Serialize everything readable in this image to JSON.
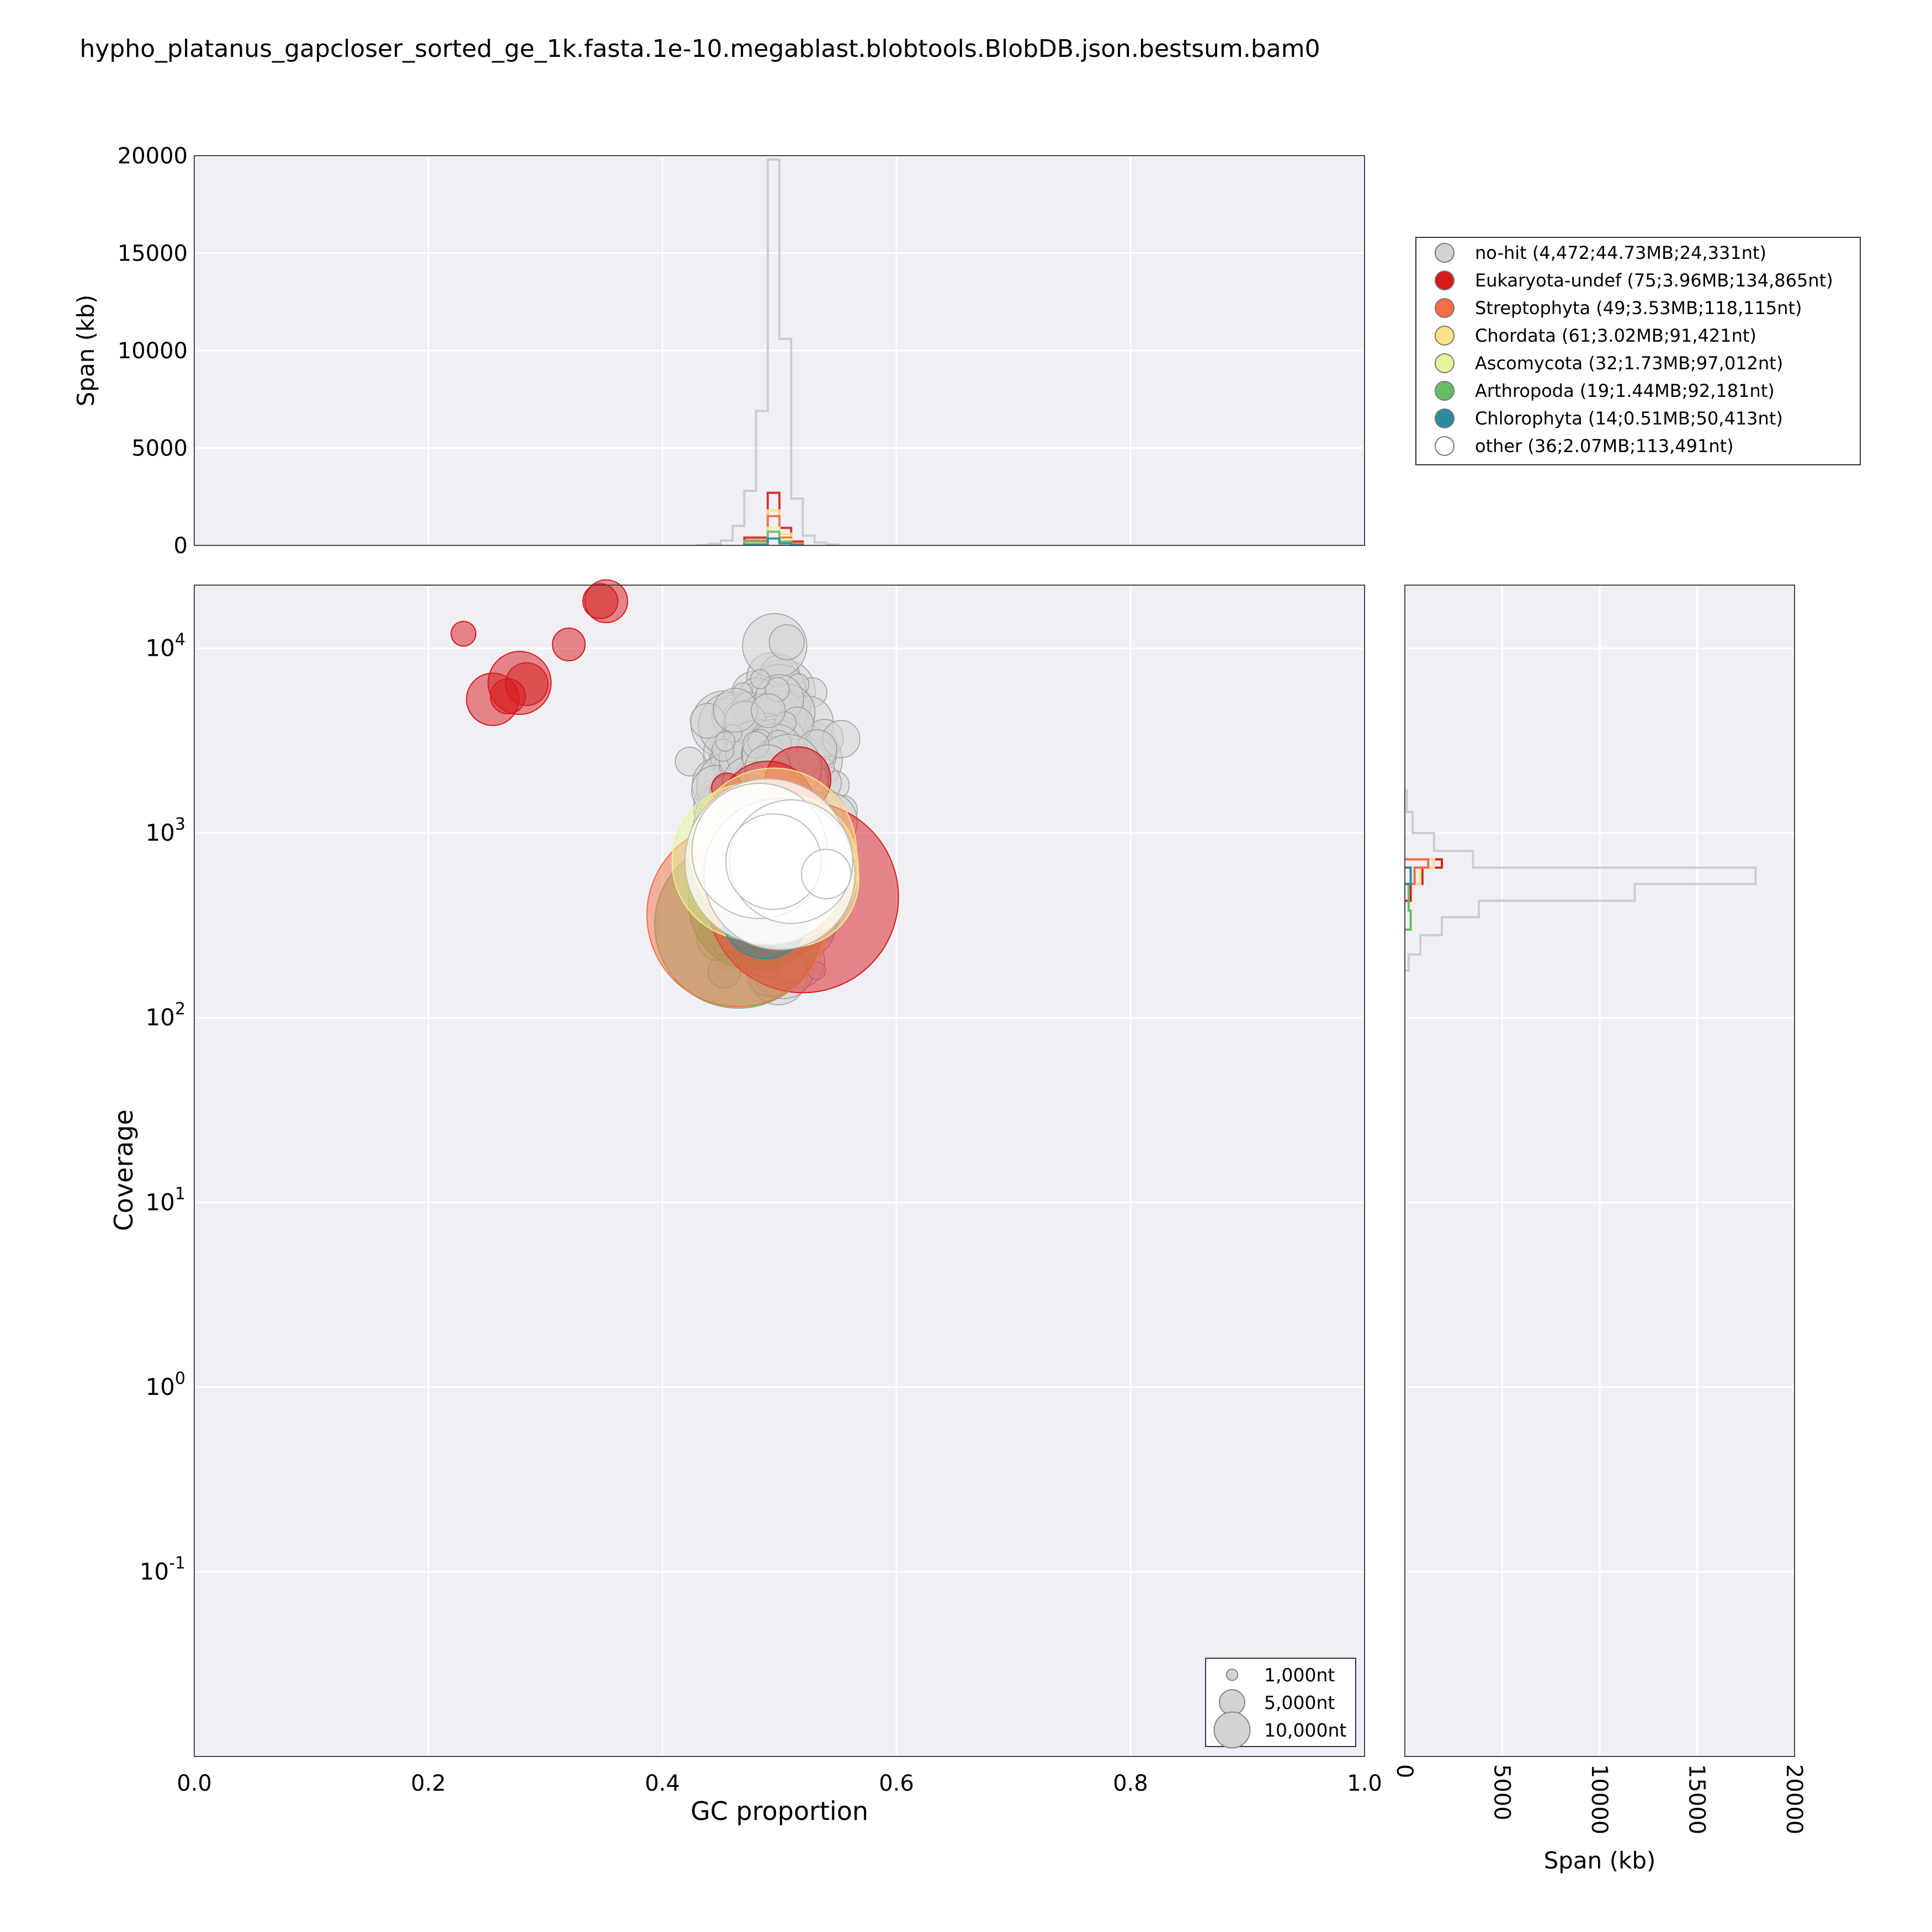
{
  "chart_data": {
    "type": "scatter",
    "title": "hypho_platanus_gapcloser_sorted_ge_1k.fasta.1e-10.megablast.blobtools.BlobDB.json.bestsum.bam0",
    "main": {
      "xlabel": "GC proportion",
      "ylabel": "Coverage",
      "xlim": [
        0.0,
        1.0
      ],
      "ylog": true,
      "ylim": [
        0.01,
        22000
      ],
      "xticks": [
        "0.0",
        "0.2",
        "0.4",
        "0.6",
        "0.8",
        "1.0"
      ],
      "yticks": [
        {
          "base": "10",
          "exp": "4",
          "value": 10000
        },
        {
          "base": "10",
          "exp": "3",
          "value": 1000
        },
        {
          "base": "10",
          "exp": "2",
          "value": 100
        },
        {
          "base": "10",
          "exp": "1",
          "value": 10
        },
        {
          "base": "10",
          "exp": "0",
          "value": 1
        },
        {
          "base": "10",
          "exp": "-1",
          "value": 0.1
        }
      ],
      "grid": true
    },
    "top_hist": {
      "ylabel": "Span (kb)",
      "ylim": [
        0,
        20000
      ],
      "yticks": [
        "20000",
        "15000",
        "10000",
        "5000",
        "0"
      ],
      "bins_gc": [
        0.43,
        0.44,
        0.45,
        0.46,
        0.47,
        0.48,
        0.49,
        0.5,
        0.51,
        0.52,
        0.53,
        0.54,
        0.55
      ],
      "nohit_span": [
        20,
        80,
        250,
        1000,
        2800,
        6900,
        19800,
        10600,
        2400,
        500,
        150,
        50
      ]
    },
    "right_hist": {
      "xlabel": "Span (kb)",
      "xlim": [
        0,
        20000
      ],
      "xticks": [
        "0",
        "5000",
        "10000",
        "15000",
        "20000"
      ],
      "bins_cov": [
        180,
        220,
        280,
        350,
        430,
        530,
        650,
        800,
        1000,
        1300,
        1700
      ],
      "nohit_span": [
        200,
        800,
        1900,
        3800,
        11800,
        18000,
        3500,
        1500,
        400,
        100
      ]
    },
    "legend": [
      {
        "label": "no-hit (4,472;44.73MB;24,331nt)",
        "color": "#d3d3d3"
      },
      {
        "label": "Eukaryota-undef (75;3.96MB;134,865nt)",
        "color": "#d7191c"
      },
      {
        "label": "Streptophyta (49;3.53MB;118,115nt)",
        "color": "#f46d43"
      },
      {
        "label": "Chordata (61;3.02MB;91,421nt)",
        "color": "#fee08b"
      },
      {
        "label": "Ascomycota (32;1.73MB;97,012nt)",
        "color": "#e6f598"
      },
      {
        "label": "Arthropoda (19;1.44MB;92,181nt)",
        "color": "#66bd63"
      },
      {
        "label": "Chlorophyta (14;0.51MB;50,413nt)",
        "color": "#2b8ba0"
      },
      {
        "label": "other (36;2.07MB;113,491nt)",
        "color": "#ffffff"
      }
    ],
    "legend_placement": "right of top histogram",
    "size_legend": [
      {
        "label": "1,000nt",
        "length": 1000
      },
      {
        "label": "5,000nt",
        "length": 5000
      },
      {
        "label": "10,000nt",
        "length": 10000
      }
    ],
    "size_legend_placement": "lower-right",
    "series": [
      {
        "name": "Eukaryota-undef",
        "points": [
          {
            "gc": 0.23,
            "cov": 12000,
            "len": 2000
          },
          {
            "gc": 0.255,
            "cov": 5300,
            "len": 9000
          },
          {
            "gc": 0.268,
            "cov": 5500,
            "len": 4000
          },
          {
            "gc": 0.278,
            "cov": 6500,
            "len": 13000
          },
          {
            "gc": 0.284,
            "cov": 6400,
            "len": 6000
          },
          {
            "gc": 0.32,
            "cov": 10500,
            "len": 3500
          },
          {
            "gc": 0.347,
            "cov": 18000,
            "len": 4000
          },
          {
            "gc": 0.352,
            "cov": 18000,
            "len": 6000
          },
          {
            "gc": 0.455,
            "cov": 1750,
            "len": 3000
          },
          {
            "gc": 0.49,
            "cov": 1350,
            "len": 30000
          },
          {
            "gc": 0.516,
            "cov": 1950,
            "len": 14000
          },
          {
            "gc": 0.52,
            "cov": 450,
            "len": 120000
          }
        ]
      },
      {
        "name": "Streptophyta",
        "points": [
          {
            "gc": 0.465,
            "cov": 360,
            "len": 110000
          },
          {
            "gc": 0.5,
            "cov": 620,
            "len": 60000
          }
        ]
      },
      {
        "name": "Chordata",
        "points": [
          {
            "gc": 0.495,
            "cov": 800,
            "len": 90000
          },
          {
            "gc": 0.505,
            "cov": 650,
            "len": 70000
          }
        ]
      },
      {
        "name": "Ascomycota",
        "points": [
          {
            "gc": 0.475,
            "cov": 700,
            "len": 80000
          },
          {
            "gc": 0.51,
            "cov": 560,
            "len": 60000
          }
        ]
      },
      {
        "name": "Arthropoda",
        "points": [
          {
            "gc": 0.465,
            "cov": 320,
            "len": 92000
          },
          {
            "gc": 0.48,
            "cov": 420,
            "len": 60000
          }
        ]
      },
      {
        "name": "Chlorophyta",
        "points": [
          {
            "gc": 0.488,
            "cov": 360,
            "len": 25000
          },
          {
            "gc": 0.5,
            "cov": 480,
            "len": 15000
          }
        ]
      },
      {
        "name": "other",
        "points": [
          {
            "gc": 0.49,
            "cov": 700,
            "len": 90000
          },
          {
            "gc": 0.5,
            "cov": 600,
            "len": 75000
          },
          {
            "gc": 0.483,
            "cov": 800,
            "len": 60000
          },
          {
            "gc": 0.51,
            "cov": 700,
            "len": 50000
          },
          {
            "gc": 0.495,
            "cov": 700,
            "len": 30000
          },
          {
            "gc": 0.54,
            "cov": 600,
            "len": 8000
          }
        ]
      }
    ]
  }
}
